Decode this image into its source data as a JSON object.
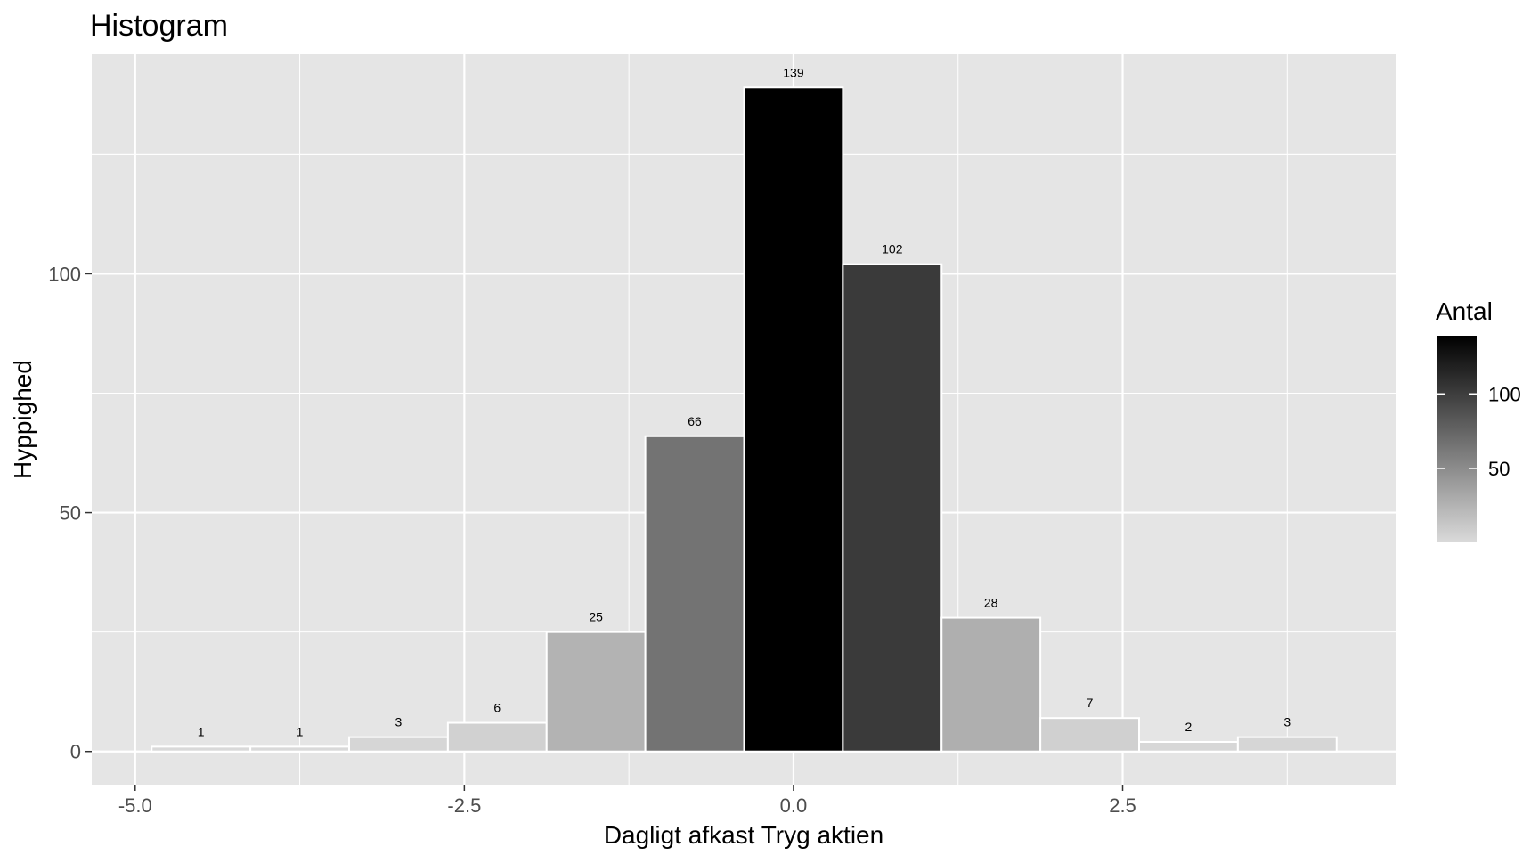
{
  "chart_data": {
    "type": "bar",
    "title": "Histogram",
    "xlabel": "Dagligt afkast Tryg aktien",
    "ylabel": "Hyppighed",
    "bin_width": 0.75,
    "bins": [
      {
        "center": -4.5,
        "count": 1
      },
      {
        "center": -3.75,
        "count": 1
      },
      {
        "center": -3.0,
        "count": 3
      },
      {
        "center": -2.25,
        "count": 6
      },
      {
        "center": -1.5,
        "count": 25
      },
      {
        "center": -0.75,
        "count": 66
      },
      {
        "center": 0.0,
        "count": 139
      },
      {
        "center": 0.75,
        "count": 102
      },
      {
        "center": 1.5,
        "count": 28
      },
      {
        "center": 2.25,
        "count": 7
      },
      {
        "center": 3.0,
        "count": 2
      },
      {
        "center": 3.75,
        "count": 3
      }
    ],
    "xlim": [
      -5.33,
      4.58
    ],
    "ylim": [
      -6.95,
      145.95
    ],
    "x_ticks": [
      {
        "value": -5.0,
        "label": "-5.0"
      },
      {
        "value": -2.5,
        "label": "-2.5"
      },
      {
        "value": 0.0,
        "label": "0.0"
      },
      {
        "value": 2.5,
        "label": "2.5"
      }
    ],
    "y_ticks": [
      {
        "value": 0,
        "label": "0"
      },
      {
        "value": 50,
        "label": "50"
      },
      {
        "value": 100,
        "label": "100"
      }
    ],
    "grid": true,
    "legend": {
      "title": "Antal",
      "placement": "right",
      "range": [
        1,
        139
      ],
      "breaks": [
        {
          "value": 50,
          "label": "50"
        },
        {
          "value": 100,
          "label": "100"
        }
      ],
      "color_low": "#d9d9d9",
      "color_high": "#000000"
    },
    "colors": {
      "panel_background": "#e5e5e5",
      "grid": "#ffffff",
      "bar_outline": "#ffffff"
    }
  }
}
